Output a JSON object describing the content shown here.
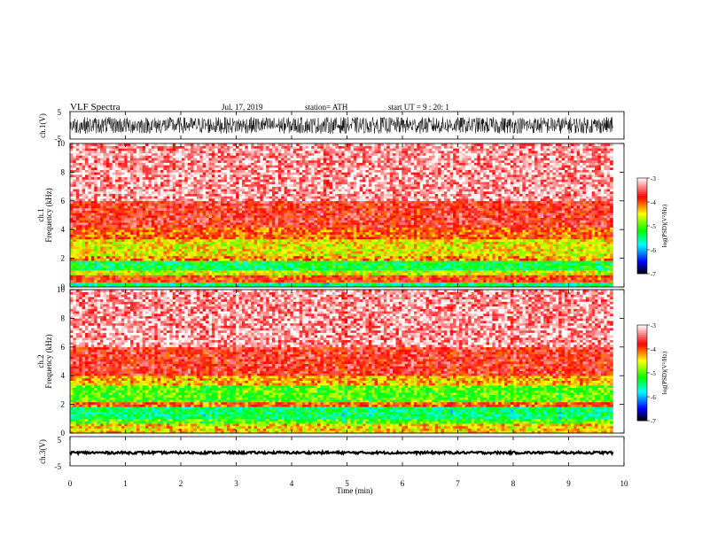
{
  "header": {
    "title": "VLF  Spectra",
    "date": "Jul.  17, 2019",
    "station": "station= ATH",
    "start": "start  UT  =    9  : 20: 1"
  },
  "chart_data": [
    {
      "type": "line",
      "panel": "ch1-waveform",
      "ylabel": "ch.1(V)",
      "ylim": [
        -5,
        5
      ],
      "yticks": [
        "5",
        "-5"
      ],
      "x": {
        "label": "Time  (min)",
        "range": [
          0,
          10
        ]
      },
      "description_of_signal": "dense broadband noise",
      "approx_amplitude_V": 3
    },
    {
      "type": "heatmap",
      "panel": "ch1-spectrogram",
      "ylabel_lines": [
        "ch.1",
        "Frequency  (kHz)"
      ],
      "ylim": [
        0,
        10
      ],
      "yticks": [
        "0",
        "2",
        "4",
        "6",
        "8",
        "10"
      ],
      "xlim": [
        0,
        9.8
      ],
      "bands_kHz": [
        {
          "from": 0.0,
          "to": 0.3,
          "level": -5.5
        },
        {
          "from": 0.3,
          "to": 0.9,
          "level": -3.9
        },
        {
          "from": 0.9,
          "to": 1.1,
          "level": -4.6
        },
        {
          "from": 1.1,
          "to": 1.9,
          "level": -5.3
        },
        {
          "from": 1.9,
          "to": 2.2,
          "level": -4.2
        },
        {
          "from": 2.2,
          "to": 3.4,
          "level": -4.5
        },
        {
          "from": 3.4,
          "to": 4.2,
          "level": -4.0
        },
        {
          "from": 4.2,
          "to": 6.0,
          "level": -3.7
        },
        {
          "from": 6.0,
          "to": 10.0,
          "level": -3.3
        }
      ],
      "colorbar": {
        "label": "log(PSD)(V²/Hz)",
        "range": [
          -7,
          -3
        ],
        "ticks": [
          "-3",
          "-4",
          "-5",
          "-6",
          "-7"
        ]
      }
    },
    {
      "type": "heatmap",
      "panel": "ch2-spectrogram",
      "ylabel_lines": [
        "ch.2",
        "Frequency  (kHz)"
      ],
      "ylim": [
        0,
        10
      ],
      "yticks": [
        "0",
        "2",
        "4",
        "6",
        "8",
        "10"
      ],
      "xlim": [
        0,
        9.8
      ],
      "bands_kHz": [
        {
          "from": 0.0,
          "to": 0.7,
          "level": -4.4
        },
        {
          "from": 0.7,
          "to": 1.0,
          "level": -5.0
        },
        {
          "from": 1.0,
          "to": 1.8,
          "level": -5.4
        },
        {
          "from": 1.8,
          "to": 2.1,
          "level": -4.0
        },
        {
          "from": 2.1,
          "to": 3.3,
          "level": -5.0
        },
        {
          "from": 3.3,
          "to": 4.0,
          "level": -4.3
        },
        {
          "from": 4.0,
          "to": 6.0,
          "level": -3.7
        },
        {
          "from": 6.0,
          "to": 10.0,
          "level": -3.3
        }
      ],
      "colorbar": {
        "label": "log(PSD)(V²/Hz)",
        "range": [
          -7,
          -3
        ],
        "ticks": [
          "-3",
          "-4",
          "-5",
          "-6",
          "-7"
        ]
      }
    },
    {
      "type": "line",
      "panel": "ch3-waveform",
      "ylabel": "ch.3(V)",
      "ylim": [
        -5,
        5
      ],
      "yticks": [
        "5",
        "-5"
      ],
      "mean_V": -0.5,
      "x": {
        "range": [
          0,
          10
        ]
      }
    }
  ],
  "xaxis": {
    "label": "Time  (min)",
    "ticks": [
      "0",
      "1",
      "2",
      "3",
      "4",
      "5",
      "6",
      "7",
      "8",
      "9",
      "10"
    ]
  },
  "colors": {
    "white": "#ffffff",
    "red": "#ff0000",
    "yellow": "#ffff00",
    "green": "#00ff00",
    "cyan": "#00ffff",
    "blue": "#0000ff",
    "black": "#000000"
  }
}
